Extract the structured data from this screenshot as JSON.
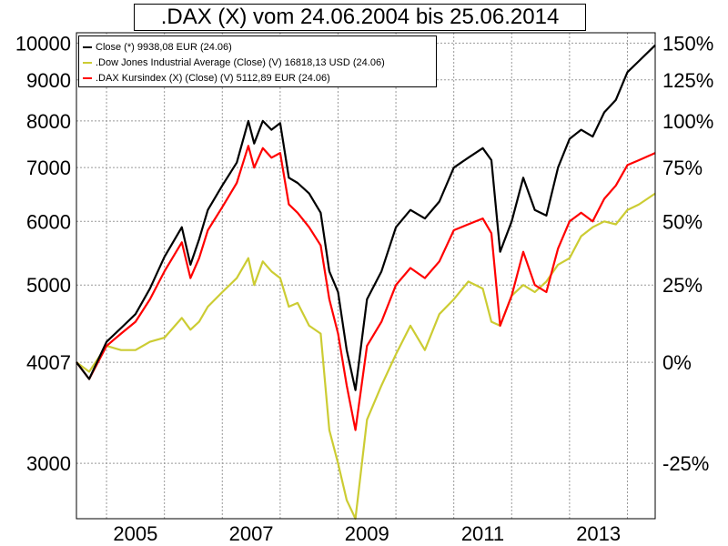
{
  "chart_data": {
    "type": "line",
    "title": ".DAX (X) vom 24.06.2004 bis 25.06.2014",
    "x_ticks": [
      "2005",
      "2007",
      "2009",
      "2011",
      "2013"
    ],
    "y_left_ticks": [
      {
        "label": "10000",
        "value": 10000
      },
      {
        "label": "9000",
        "value": 9000
      },
      {
        "label": "8000",
        "value": 8000
      },
      {
        "label": "7000",
        "value": 7000
      },
      {
        "label": "6000",
        "value": 6000
      },
      {
        "label": "5000",
        "value": 5000
      },
      {
        "label": "4007",
        "value": 4007
      },
      {
        "label": "3000",
        "value": 3000
      }
    ],
    "y_right_ticks": [
      "150%",
      "125%",
      "100%",
      "75%",
      "50%",
      "25%",
      "0%",
      "-25%"
    ],
    "x_range": [
      2004.48,
      2014.48
    ],
    "y_range": [
      2560,
      10300
    ],
    "y_scale": "log",
    "grid": true,
    "legend_position": "top-left",
    "series": [
      {
        "name": "Close (*) 9938,08 EUR (24.06)",
        "color": "#000000",
        "x": [
          2004.48,
          2004.7,
          2005.0,
          2005.25,
          2005.5,
          2005.75,
          2006.0,
          2006.3,
          2006.45,
          2006.6,
          2006.75,
          2007.0,
          2007.25,
          2007.45,
          2007.55,
          2007.7,
          2007.85,
          2008.0,
          2008.15,
          2008.3,
          2008.5,
          2008.7,
          2008.85,
          2009.0,
          2009.15,
          2009.3,
          2009.5,
          2009.75,
          2010.0,
          2010.25,
          2010.5,
          2010.75,
          2011.0,
          2011.25,
          2011.5,
          2011.65,
          2011.8,
          2012.0,
          2012.2,
          2012.4,
          2012.6,
          2012.8,
          2013.0,
          2013.2,
          2013.4,
          2013.6,
          2013.8,
          2014.0,
          2014.2,
          2014.48
        ],
        "y": [
          4007,
          3820,
          4250,
          4420,
          4600,
          4950,
          5420,
          5900,
          5300,
          5700,
          6200,
          6650,
          7100,
          8000,
          7500,
          8000,
          7800,
          7950,
          6800,
          6700,
          6500,
          6150,
          5200,
          4900,
          4150,
          3700,
          4800,
          5200,
          5900,
          6200,
          6050,
          6350,
          7000,
          7200,
          7400,
          7150,
          5500,
          6000,
          6800,
          6200,
          6100,
          7000,
          7600,
          7800,
          7650,
          8200,
          8500,
          9200,
          9500,
          9938
        ]
      },
      {
        "name": ".Dow Jones Industrial Average (Close) (V) 16818,13 USD (24.06)",
        "color": "#cccc33",
        "x": [
          2004.48,
          2004.7,
          2005.0,
          2005.25,
          2005.5,
          2005.75,
          2006.0,
          2006.3,
          2006.45,
          2006.6,
          2006.75,
          2007.0,
          2007.25,
          2007.45,
          2007.55,
          2007.7,
          2007.85,
          2008.0,
          2008.15,
          2008.3,
          2008.5,
          2008.7,
          2008.85,
          2009.0,
          2009.15,
          2009.3,
          2009.5,
          2009.75,
          2010.0,
          2010.25,
          2010.5,
          2010.75,
          2011.0,
          2011.25,
          2011.5,
          2011.65,
          2011.8,
          2012.0,
          2012.2,
          2012.4,
          2012.6,
          2012.8,
          2013.0,
          2013.2,
          2013.4,
          2013.6,
          2013.8,
          2014.0,
          2014.2,
          2014.48
        ],
        "y": [
          4007,
          3900,
          4200,
          4150,
          4150,
          4250,
          4300,
          4550,
          4400,
          4500,
          4700,
          4900,
          5100,
          5400,
          5000,
          5350,
          5200,
          5100,
          4700,
          4750,
          4450,
          4350,
          3300,
          3000,
          2700,
          2560,
          3400,
          3750,
          4100,
          4450,
          4150,
          4600,
          4800,
          5050,
          4950,
          4500,
          4450,
          4850,
          5000,
          4900,
          5050,
          5300,
          5400,
          5750,
          5900,
          6000,
          5950,
          6200,
          6300,
          6500
        ]
      },
      {
        "name": ".DAX Kursindex (X) (Close) (V) 5112,89 EUR (24.06)",
        "color": "#ff0000",
        "x": [
          2004.48,
          2004.7,
          2005.0,
          2005.25,
          2005.5,
          2005.75,
          2006.0,
          2006.3,
          2006.45,
          2006.6,
          2006.75,
          2007.0,
          2007.25,
          2007.45,
          2007.55,
          2007.7,
          2007.85,
          2008.0,
          2008.15,
          2008.3,
          2008.5,
          2008.7,
          2008.85,
          2009.0,
          2009.15,
          2009.3,
          2009.5,
          2009.75,
          2010.0,
          2010.25,
          2010.5,
          2010.75,
          2011.0,
          2011.25,
          2011.5,
          2011.65,
          2011.8,
          2012.0,
          2012.2,
          2012.4,
          2012.6,
          2012.8,
          2013.0,
          2013.2,
          2013.4,
          2013.6,
          2013.8,
          2014.0,
          2014.2,
          2014.48
        ],
        "y": [
          4007,
          3820,
          4200,
          4350,
          4500,
          4800,
          5200,
          5650,
          5100,
          5400,
          5850,
          6250,
          6700,
          7450,
          7000,
          7400,
          7200,
          7300,
          6300,
          6150,
          5900,
          5600,
          4800,
          4350,
          3750,
          3300,
          4200,
          4500,
          5000,
          5250,
          5100,
          5350,
          5850,
          5950,
          6050,
          5800,
          4450,
          4850,
          5500,
          5000,
          4900,
          5550,
          6000,
          6150,
          6000,
          6400,
          6650,
          7050,
          7150,
          7300
        ]
      }
    ]
  }
}
